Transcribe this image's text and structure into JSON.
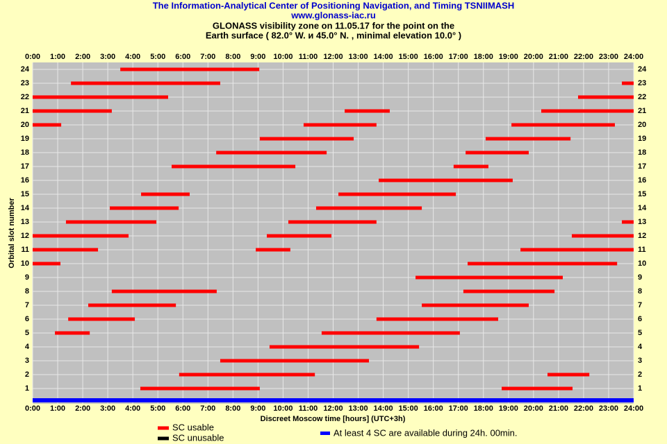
{
  "chart_data": {
    "type": "timeline",
    "title": "The Information-Analytical Center of Positioning Navigation, and Timing TSNIIMASH",
    "subtitle": "www.glonass-iac.ru",
    "heading": [
      "GLONASS visibility zone on 11.05.17 for the point on the",
      "Earth surface (  82.0°  W. и 45.0°  N. ,  minimal elevation 10.0° )"
    ],
    "x_label": "Discreet Moscow time [hours] (UTC+3h)",
    "y_label": "Orbital slot number",
    "xlim": [
      0,
      24
    ],
    "xticks": [
      {
        "value": 0,
        "label": "0:00"
      },
      {
        "value": 1,
        "label": "1:00"
      },
      {
        "value": 2,
        "label": "2:00"
      },
      {
        "value": 3,
        "label": "3:00"
      },
      {
        "value": 4,
        "label": "4:00"
      },
      {
        "value": 5,
        "label": "5:00"
      },
      {
        "value": 6,
        "label": "6:00"
      },
      {
        "value": 7,
        "label": "7:00"
      },
      {
        "value": 8,
        "label": "8:00"
      },
      {
        "value": 9,
        "label": "9:00"
      },
      {
        "value": 10,
        "label": "10:00"
      },
      {
        "value": 11,
        "label": "11:00"
      },
      {
        "value": 12,
        "label": "12:00"
      },
      {
        "value": 13,
        "label": "13:00"
      },
      {
        "value": 14,
        "label": "14:00"
      },
      {
        "value": 15,
        "label": "15:00"
      },
      {
        "value": 16,
        "label": "16:00"
      },
      {
        "value": 17,
        "label": "17:00"
      },
      {
        "value": 18,
        "label": "18:00"
      },
      {
        "value": 19,
        "label": "19:00"
      },
      {
        "value": 20,
        "label": "20:00"
      },
      {
        "value": 21,
        "label": "21:00"
      },
      {
        "value": 22,
        "label": "22:00"
      },
      {
        "value": 23,
        "label": "23:00"
      },
      {
        "value": 24,
        "label": "24:00"
      }
    ],
    "ylim": [
      0,
      24.5
    ],
    "yticks": [
      1,
      2,
      3,
      4,
      5,
      6,
      7,
      8,
      9,
      10,
      11,
      12,
      13,
      14,
      15,
      16,
      17,
      18,
      19,
      20,
      21,
      22,
      23,
      24
    ],
    "grid": true,
    "series": [
      {
        "name": "SC usable",
        "color": "#ff0000",
        "bars": [
          {
            "y": 24,
            "x": [
              3.5,
              9.05
            ]
          },
          {
            "y": 23,
            "x": [
              1.53,
              7.49
            ]
          },
          {
            "y": 23,
            "x": [
              23.53,
              24
            ]
          },
          {
            "y": 22,
            "x": [
              0,
              5.41
            ]
          },
          {
            "y": 22,
            "x": [
              21.78,
              24
            ]
          },
          {
            "y": 21,
            "x": [
              0,
              3.16
            ]
          },
          {
            "y": 21,
            "x": [
              12.46,
              14.26
            ]
          },
          {
            "y": 21,
            "x": [
              20.31,
              24
            ]
          },
          {
            "y": 20,
            "x": [
              0,
              1.14
            ]
          },
          {
            "y": 20,
            "x": [
              10.82,
              13.73
            ]
          },
          {
            "y": 20,
            "x": [
              19.12,
              23.25
            ]
          },
          {
            "y": 19,
            "x": [
              9.07,
              12.82
            ]
          },
          {
            "y": 19,
            "x": [
              18.09,
              21.48
            ]
          },
          {
            "y": 18,
            "x": [
              7.33,
              11.74
            ]
          },
          {
            "y": 18,
            "x": [
              17.29,
              19.81
            ]
          },
          {
            "y": 17,
            "x": [
              5.55,
              10.49
            ]
          },
          {
            "y": 17,
            "x": [
              16.81,
              18.2
            ]
          },
          {
            "y": 16,
            "x": [
              13.82,
              19.17
            ]
          },
          {
            "y": 15,
            "x": [
              4.33,
              6.27
            ]
          },
          {
            "y": 15,
            "x": [
              12.21,
              16.9
            ]
          },
          {
            "y": 14,
            "x": [
              3.08,
              5.83
            ]
          },
          {
            "y": 14,
            "x": [
              11.32,
              15.54
            ]
          },
          {
            "y": 13,
            "x": [
              1.33,
              4.94
            ]
          },
          {
            "y": 13,
            "x": [
              10.21,
              13.73
            ]
          },
          {
            "y": 13,
            "x": [
              23.53,
              24
            ]
          },
          {
            "y": 12,
            "x": [
              0,
              3.83
            ]
          },
          {
            "y": 12,
            "x": [
              9.35,
              11.93
            ]
          },
          {
            "y": 12,
            "x": [
              21.53,
              24
            ]
          },
          {
            "y": 11,
            "x": [
              0,
              2.61
            ]
          },
          {
            "y": 11,
            "x": [
              8.91,
              10.29
            ]
          },
          {
            "y": 11,
            "x": [
              19.48,
              24
            ]
          },
          {
            "y": 10,
            "x": [
              0,
              1.11
            ]
          },
          {
            "y": 10,
            "x": [
              17.37,
              23.34
            ]
          },
          {
            "y": 9,
            "x": [
              15.29,
              21.17
            ]
          },
          {
            "y": 8,
            "x": [
              3.16,
              7.35
            ]
          },
          {
            "y": 8,
            "x": [
              17.2,
              20.84
            ]
          },
          {
            "y": 7,
            "x": [
              2.22,
              5.72
            ]
          },
          {
            "y": 7,
            "x": [
              15.54,
              19.81
            ]
          },
          {
            "y": 6,
            "x": [
              1.42,
              4.08
            ]
          },
          {
            "y": 6,
            "x": [
              13.73,
              18.59
            ]
          },
          {
            "y": 5,
            "x": [
              0.89,
              2.28
            ]
          },
          {
            "y": 5,
            "x": [
              11.54,
              17.06
            ]
          },
          {
            "y": 4,
            "x": [
              9.46,
              15.43
            ]
          },
          {
            "y": 3,
            "x": [
              7.49,
              13.43
            ]
          },
          {
            "y": 2,
            "x": [
              5.85,
              11.27
            ]
          },
          {
            "y": 2,
            "x": [
              20.56,
              22.23
            ]
          },
          {
            "y": 1,
            "x": [
              4.3,
              9.07
            ]
          },
          {
            "y": 1,
            "x": [
              18.73,
              21.56
            ]
          }
        ]
      },
      {
        "name": "SC unusable",
        "color": "#000000",
        "bars": []
      }
    ],
    "availability": {
      "label": "At least 4 SC are available during 24h. 00min.",
      "color": "#0000ff",
      "x": [
        0,
        24
      ]
    }
  }
}
